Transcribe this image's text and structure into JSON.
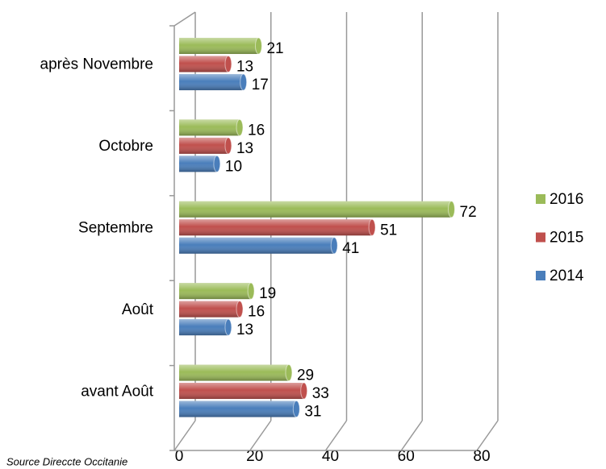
{
  "chart_data": {
    "type": "bar",
    "orientation": "horizontal",
    "three_d": true,
    "categories": [
      "avant Août",
      "Août",
      "Septembre",
      "Octobre",
      "après Novembre"
    ],
    "series": [
      {
        "name": "2014",
        "color": "#4a7ebb",
        "values": [
          31,
          13,
          41,
          10,
          17
        ]
      },
      {
        "name": "2015",
        "color": "#c0504d",
        "values": [
          33,
          16,
          51,
          13,
          13
        ]
      },
      {
        "name": "2016",
        "color": "#9bbb59",
        "values": [
          29,
          19,
          72,
          16,
          21
        ]
      }
    ],
    "xlim": [
      0,
      80
    ],
    "xticks": [
      0,
      20,
      40,
      60,
      80
    ],
    "grid": true,
    "legend": "right",
    "source": "Source Direccte Occitanie"
  }
}
